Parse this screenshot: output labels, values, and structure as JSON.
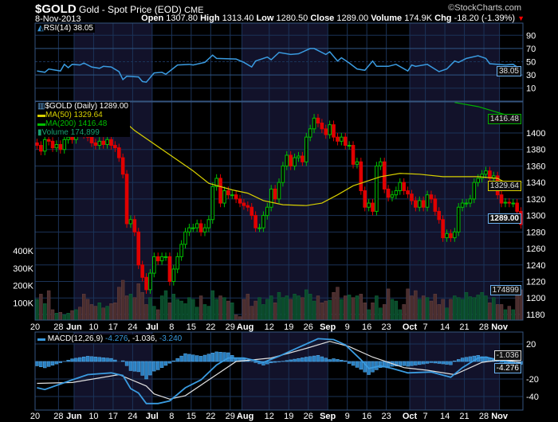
{
  "header": {
    "symbol": "$GOLD",
    "name": "Gold - Spot Price (EOD)",
    "exchange": "CME",
    "copyright": "©StockCharts.com",
    "date": "8-Nov-2013",
    "open_label": "Open",
    "open": "1307.80",
    "high_label": "High",
    "high": "1313.40",
    "low_label": "Low",
    "low": "1280.50",
    "close_label": "Close",
    "close": "1289.00",
    "volume_label": "Volume",
    "volume": "174.9K",
    "chg_label": "Chg",
    "chg": "-18.20 (-1.39%)",
    "down_color": "#ff0000"
  },
  "colors": {
    "up": "#00c000",
    "down": "#e00000",
    "ma50": "#d8d000",
    "ma200": "#00b000",
    "rsi": "#3a9be0",
    "macd": "#3a9be0",
    "signal": "#e0e0e0",
    "grid": "#1b3358",
    "border": "#35557f",
    "shade": "#12122a"
  },
  "chart_data": [
    {
      "type": "line",
      "title": "RSI(14) 38.05",
      "legend": "RSI(14) 38.05",
      "ylim": [
        0,
        100
      ],
      "yticks": [
        10,
        30,
        50,
        70,
        90
      ],
      "last_value_tag": "38.05",
      "points": [
        [
          "2013-05-20",
          36
        ],
        [
          "2013-05-22",
          34
        ],
        [
          "2013-05-23",
          39
        ],
        [
          "2013-05-28",
          36
        ],
        [
          "2013-05-29",
          46
        ],
        [
          "2013-05-30",
          41
        ],
        [
          "2013-05-31",
          46
        ],
        [
          "2013-06-04",
          45
        ],
        [
          "2013-06-05",
          48
        ],
        [
          "2013-06-07",
          42
        ],
        [
          "2013-06-11",
          40
        ],
        [
          "2013-06-12",
          43
        ],
        [
          "2013-06-14",
          42
        ],
        [
          "2013-06-18",
          35
        ],
        [
          "2013-06-19",
          23
        ],
        [
          "2013-06-20",
          28
        ],
        [
          "2013-06-25",
          27
        ],
        [
          "2013-06-26",
          20
        ],
        [
          "2013-06-27",
          19
        ],
        [
          "2013-07-01",
          33
        ],
        [
          "2013-07-03",
          34
        ],
        [
          "2013-07-04",
          31
        ],
        [
          "2013-07-09",
          45
        ],
        [
          "2013-07-12",
          46
        ],
        [
          "2013-07-15",
          45
        ],
        [
          "2013-07-18",
          49
        ],
        [
          "2013-07-22",
          60
        ],
        [
          "2013-07-23",
          55
        ],
        [
          "2013-07-30",
          54
        ],
        [
          "2013-08-01",
          49
        ],
        [
          "2013-08-05",
          42
        ],
        [
          "2013-08-06",
          51
        ],
        [
          "2013-08-09",
          57
        ],
        [
          "2013-08-12",
          53
        ],
        [
          "2013-08-14",
          64
        ],
        [
          "2013-08-19",
          61
        ],
        [
          "2013-08-21",
          62
        ],
        [
          "2013-08-26",
          70
        ],
        [
          "2013-08-27",
          70
        ],
        [
          "2013-08-30",
          61
        ],
        [
          "2013-09-02",
          65
        ],
        [
          "2013-09-04",
          51
        ],
        [
          "2013-09-05",
          56
        ],
        [
          "2013-09-09",
          48
        ],
        [
          "2013-09-11",
          39
        ],
        [
          "2013-09-13",
          37
        ],
        [
          "2013-09-17",
          51
        ],
        [
          "2013-09-18",
          43
        ],
        [
          "2013-09-23",
          43
        ],
        [
          "2013-09-25",
          46
        ],
        [
          "2013-09-30",
          36
        ],
        [
          "2013-10-01",
          45
        ],
        [
          "2013-10-02",
          43
        ],
        [
          "2013-10-07",
          46
        ],
        [
          "2013-10-10",
          35
        ],
        [
          "2013-10-14",
          39
        ],
        [
          "2013-10-16",
          51
        ],
        [
          "2013-10-17",
          49
        ],
        [
          "2013-10-21",
          55
        ],
        [
          "2013-10-24",
          59
        ],
        [
          "2013-10-28",
          55
        ],
        [
          "2013-10-29",
          47
        ],
        [
          "2013-11-04",
          45
        ],
        [
          "2013-11-06",
          46
        ],
        [
          "2013-11-08",
          38.05
        ]
      ]
    },
    {
      "type": "candlestick",
      "legend": {
        "price": "$GOLD (Daily) 1289.00",
        "ma50": "MA(50) 1329.64",
        "ma200": "MA(200) 1416.48",
        "volume": "Volume 174,899"
      },
      "date_range": [
        "2013-05-20",
        "2013-11-08"
      ],
      "ylim": [
        1173,
        1438
      ],
      "yticks": [
        1180,
        1200,
        1220,
        1240,
        1260,
        1280,
        1300,
        1320,
        1340,
        1360,
        1380,
        1400
      ],
      "close": [
        1385,
        1378,
        1392,
        1390,
        1382,
        1386,
        1380,
        1392,
        1395,
        1392,
        1410,
        1402,
        1398,
        1395,
        1388,
        1385,
        1390,
        1386,
        1392,
        1385,
        1382,
        1370,
        1350,
        1290,
        1295,
        1280,
        1240,
        1225,
        1210,
        1230,
        1250,
        1245,
        1250,
        1250,
        1220,
        1235,
        1250,
        1265,
        1280,
        1285,
        1285,
        1290,
        1280,
        1285,
        1295,
        1335,
        1345,
        1315,
        1330,
        1325,
        1325,
        1320,
        1315,
        1312,
        1310,
        1300,
        1285,
        1285,
        1300,
        1310,
        1332,
        1320,
        1340,
        1360,
        1373,
        1360,
        1370,
        1372,
        1365,
        1395,
        1405,
        1418,
        1412,
        1405,
        1398,
        1410,
        1395,
        1390,
        1395,
        1385,
        1385,
        1362,
        1365,
        1330,
        1310,
        1315,
        1305,
        1360,
        1365,
        1332,
        1322,
        1325,
        1330,
        1340,
        1330,
        1326,
        1318,
        1310,
        1318,
        1310,
        1325,
        1320,
        1305,
        1295,
        1273,
        1278,
        1273,
        1280,
        1310,
        1315,
        1315,
        1320,
        1340,
        1345,
        1350,
        1354,
        1345,
        1348,
        1325,
        1315,
        1316,
        1315,
        1315,
        1305,
        1289
      ],
      "volume_k": [
        120,
        150,
        95,
        170,
        60,
        40,
        45,
        30,
        40,
        55,
        60,
        75,
        150,
        120,
        90,
        80,
        100,
        70,
        80,
        95,
        100,
        190,
        230,
        140,
        150,
        130,
        210,
        160,
        90,
        130,
        80,
        60,
        140,
        170,
        100,
        150,
        120,
        110,
        95,
        130,
        120,
        75,
        140,
        90,
        80,
        170,
        120,
        140,
        130,
        110,
        100,
        30,
        20,
        120,
        150,
        80,
        110,
        130,
        90,
        120,
        140,
        100,
        160,
        130,
        140,
        120,
        150,
        140,
        130,
        175,
        150,
        110,
        140,
        100,
        110,
        115,
        160,
        190,
        120,
        140,
        145,
        130,
        140,
        150,
        100,
        60,
        100,
        140,
        70,
        90,
        180,
        120,
        110,
        60,
        90,
        180,
        140,
        170,
        120,
        140,
        130,
        110,
        150,
        90,
        120,
        70,
        120,
        140,
        130,
        120,
        160,
        135,
        130,
        145,
        160,
        140,
        100,
        130,
        90,
        90,
        60,
        80,
        60,
        180,
        175
      ],
      "volume_ticks": [
        "100K",
        "200K",
        "300K",
        "400K"
      ],
      "ma50": [
        [
          "2013-06-12",
          1438
        ],
        [
          "2013-06-14",
          1428
        ],
        [
          "2013-06-24",
          1403
        ],
        [
          "2013-07-15",
          1354
        ],
        [
          "2013-07-19",
          1339
        ],
        [
          "2013-07-29",
          1331
        ],
        [
          "2013-08-02",
          1327
        ],
        [
          "2013-08-08",
          1318
        ],
        [
          "2013-08-15",
          1313
        ],
        [
          "2013-08-23",
          1312
        ],
        [
          "2013-08-29",
          1315
        ],
        [
          "2013-09-04",
          1325
        ],
        [
          "2013-09-10",
          1336
        ],
        [
          "2013-09-19",
          1347
        ],
        [
          "2013-09-26",
          1351
        ],
        [
          "2013-10-03",
          1350
        ],
        [
          "2013-10-11",
          1347
        ],
        [
          "2013-10-24",
          1347
        ],
        [
          "2013-10-31",
          1345
        ],
        [
          "2013-11-08",
          1329.64
        ]
      ],
      "ma200": [
        [
          "2013-10-16",
          1437
        ],
        [
          "2013-10-24",
          1432
        ],
        [
          "2013-11-08",
          1416.48
        ]
      ],
      "tags": {
        "ma200": "1416.48",
        "ma50": "1329.64",
        "close": "1289.00",
        "volume": "174899"
      }
    },
    {
      "type": "line",
      "legend": {
        "name": "MACD(12,26,9)",
        "macd": "-4.276",
        "signal": "-1.036",
        "hist": "-3.240"
      },
      "ylim": [
        -55,
        33
      ],
      "yticks": [
        20,
        -20,
        -40
      ],
      "tags": {
        "signal": "-1.036",
        "macd": "-4.276"
      },
      "macd": [
        [
          "2013-05-20",
          -30
        ],
        [
          "2013-05-22",
          -32
        ],
        [
          "2013-05-31",
          -21
        ],
        [
          "2013-06-06",
          -15
        ],
        [
          "2013-06-14",
          -13
        ],
        [
          "2013-06-19",
          -16
        ],
        [
          "2013-06-21",
          -31
        ],
        [
          "2013-06-25",
          -36
        ],
        [
          "2013-06-27",
          -48
        ],
        [
          "2013-07-02",
          -48
        ],
        [
          "2013-07-05",
          -45
        ],
        [
          "2013-07-11",
          -30
        ],
        [
          "2013-07-17",
          -21
        ],
        [
          "2013-07-23",
          -4
        ],
        [
          "2013-07-26",
          4
        ],
        [
          "2013-08-01",
          4
        ],
        [
          "2013-08-08",
          -1
        ],
        [
          "2013-08-14",
          6
        ],
        [
          "2013-08-20",
          14
        ],
        [
          "2013-08-23",
          20
        ],
        [
          "2013-08-28",
          26
        ],
        [
          "2013-09-03",
          25
        ],
        [
          "2013-09-06",
          19
        ],
        [
          "2013-09-12",
          2
        ],
        [
          "2013-09-16",
          -8
        ],
        [
          "2013-09-19",
          -5
        ],
        [
          "2013-09-24",
          -8
        ],
        [
          "2013-09-30",
          -13
        ],
        [
          "2013-10-08",
          -12
        ],
        [
          "2013-10-15",
          -18
        ],
        [
          "2013-10-18",
          -7
        ],
        [
          "2013-10-24",
          4
        ],
        [
          "2013-10-28",
          5
        ],
        [
          "2013-11-04",
          0
        ],
        [
          "2013-11-08",
          -4.276
        ]
      ],
      "signal": [
        [
          "2013-05-20",
          -25
        ],
        [
          "2013-05-31",
          -24
        ],
        [
          "2013-06-18",
          -15
        ],
        [
          "2013-06-27",
          -28
        ],
        [
          "2013-07-01",
          -37
        ],
        [
          "2013-07-05",
          -43
        ],
        [
          "2013-07-11",
          -39
        ],
        [
          "2013-07-23",
          -15
        ],
        [
          "2013-07-30",
          0
        ],
        [
          "2013-08-12",
          4
        ],
        [
          "2013-08-23",
          15
        ],
        [
          "2013-09-02",
          23
        ],
        [
          "2013-09-09",
          17
        ],
        [
          "2013-09-17",
          5
        ],
        [
          "2013-09-27",
          -7
        ],
        [
          "2013-10-07",
          -10
        ],
        [
          "2013-10-16",
          -15
        ],
        [
          "2013-10-25",
          -1
        ],
        [
          "2013-11-01",
          2
        ],
        [
          "2013-11-08",
          -1.036
        ]
      ]
    }
  ],
  "x_axis": [
    [
      "2013-05-20",
      "20"
    ],
    [
      "2013-05-28",
      "28"
    ],
    [
      "2013-06-03",
      "Jun"
    ],
    [
      "2013-06-10",
      "10"
    ],
    [
      "2013-06-17",
      "17"
    ],
    [
      "2013-06-24",
      "24"
    ],
    [
      "2013-07-01",
      "Jul"
    ],
    [
      "2013-07-08",
      "8"
    ],
    [
      "2013-07-15",
      "15"
    ],
    [
      "2013-07-22",
      "22"
    ],
    [
      "2013-07-29",
      "29"
    ],
    [
      "2013-08-01",
      "Aug"
    ],
    [
      "2013-08-12",
      "12"
    ],
    [
      "2013-08-19",
      "19"
    ],
    [
      "2013-08-26",
      "26"
    ],
    [
      "2013-09-02",
      "Sep"
    ],
    [
      "2013-09-09",
      "9"
    ],
    [
      "2013-09-16",
      "16"
    ],
    [
      "2013-09-23",
      "23"
    ],
    [
      "2013-10-01",
      "Oct"
    ],
    [
      "2013-10-07",
      "7"
    ],
    [
      "2013-10-14",
      "14"
    ],
    [
      "2013-10-21",
      "21"
    ],
    [
      "2013-10-28",
      "28"
    ],
    [
      "2013-11-01",
      "Nov"
    ]
  ]
}
